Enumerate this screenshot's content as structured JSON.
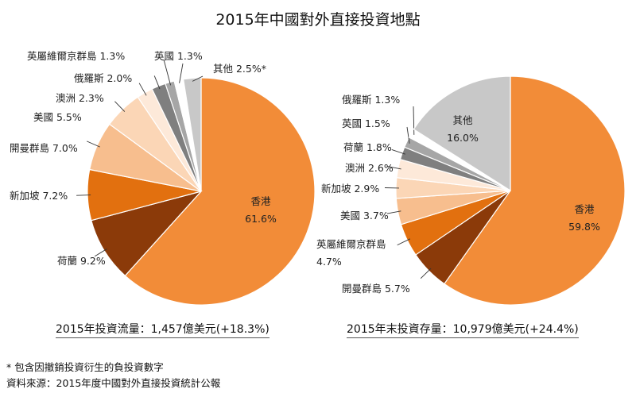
{
  "title": "2015年中國對外直接投資地點",
  "colors": {
    "orange": "#f28c38",
    "brown": "#8b3a09",
    "dark_orange": "#e2700f",
    "peach": "#f7be8e",
    "light_peach": "#fbd6b6",
    "pale_peach": "#fde9d9",
    "dark_gray": "#7f7f7f",
    "mid_gray": "#a6a6a6",
    "light_gray": "#c8c8c8"
  },
  "chart_data": [
    {
      "type": "pie",
      "caption": "2015年投資流量：1,457億美元(+18.3%)",
      "slices": [
        {
          "label": "香港",
          "value": 61.6,
          "display": "61.6%",
          "color": "#f28c38"
        },
        {
          "label": "荷蘭",
          "value": 9.2,
          "display": "9.2%",
          "color": "#8b3a09"
        },
        {
          "label": "新加坡",
          "value": 7.2,
          "display": "7.2%",
          "color": "#e2700f"
        },
        {
          "label": "開曼群島",
          "value": 7.0,
          "display": "7.0%",
          "color": "#f7be8e"
        },
        {
          "label": "美國",
          "value": 5.5,
          "display": "5.5%",
          "color": "#fbd6b6"
        },
        {
          "label": "澳洲",
          "value": 2.3,
          "display": "2.3%",
          "color": "#fde9d9"
        },
        {
          "label": "俄羅斯",
          "value": 2.0,
          "display": "2.0%",
          "color": "#7f7f7f"
        },
        {
          "label": "英屬維爾京群島",
          "value": 1.3,
          "display": "1.3%",
          "color": "#a6a6a6"
        },
        {
          "label": "英國",
          "value": 1.3,
          "display": "1.3%",
          "color": "#ffffff"
        },
        {
          "label": "其他",
          "value": 2.5,
          "display": "2.5%*",
          "color": "#c8c8c8"
        }
      ]
    },
    {
      "type": "pie",
      "caption": "2015年末投資存量：10,979億美元(+24.4%)",
      "slices": [
        {
          "label": "香港",
          "value": 59.8,
          "display": "59.8%",
          "color": "#f28c38"
        },
        {
          "label": "開曼群島",
          "value": 5.7,
          "display": "5.7%",
          "color": "#8b3a09"
        },
        {
          "label": "英屬維爾京群島",
          "value": 4.7,
          "display": "4.7%",
          "color": "#e2700f"
        },
        {
          "label": "美國",
          "value": 3.7,
          "display": "3.7%",
          "color": "#f7be8e"
        },
        {
          "label": "新加坡",
          "value": 2.9,
          "display": "2.9%",
          "color": "#fbd6b6"
        },
        {
          "label": "澳洲",
          "value": 2.6,
          "display": "2.6%",
          "color": "#fde9d9"
        },
        {
          "label": "荷蘭",
          "value": 1.8,
          "display": "1.8%",
          "color": "#7f7f7f"
        },
        {
          "label": "英國",
          "value": 1.5,
          "display": "1.5%",
          "color": "#a6a6a6"
        },
        {
          "label": "俄羅斯",
          "value": 1.3,
          "display": "1.3%",
          "color": "#ffffff"
        },
        {
          "label": "其他",
          "value": 16.0,
          "display": "16.0%",
          "color": "#c8c8c8"
        }
      ]
    }
  ],
  "notes": {
    "footnote": "* 包含因撤銷投資衍生的負投資數字",
    "source": "資料來源：2015年度中國對外直接投資統計公報"
  }
}
